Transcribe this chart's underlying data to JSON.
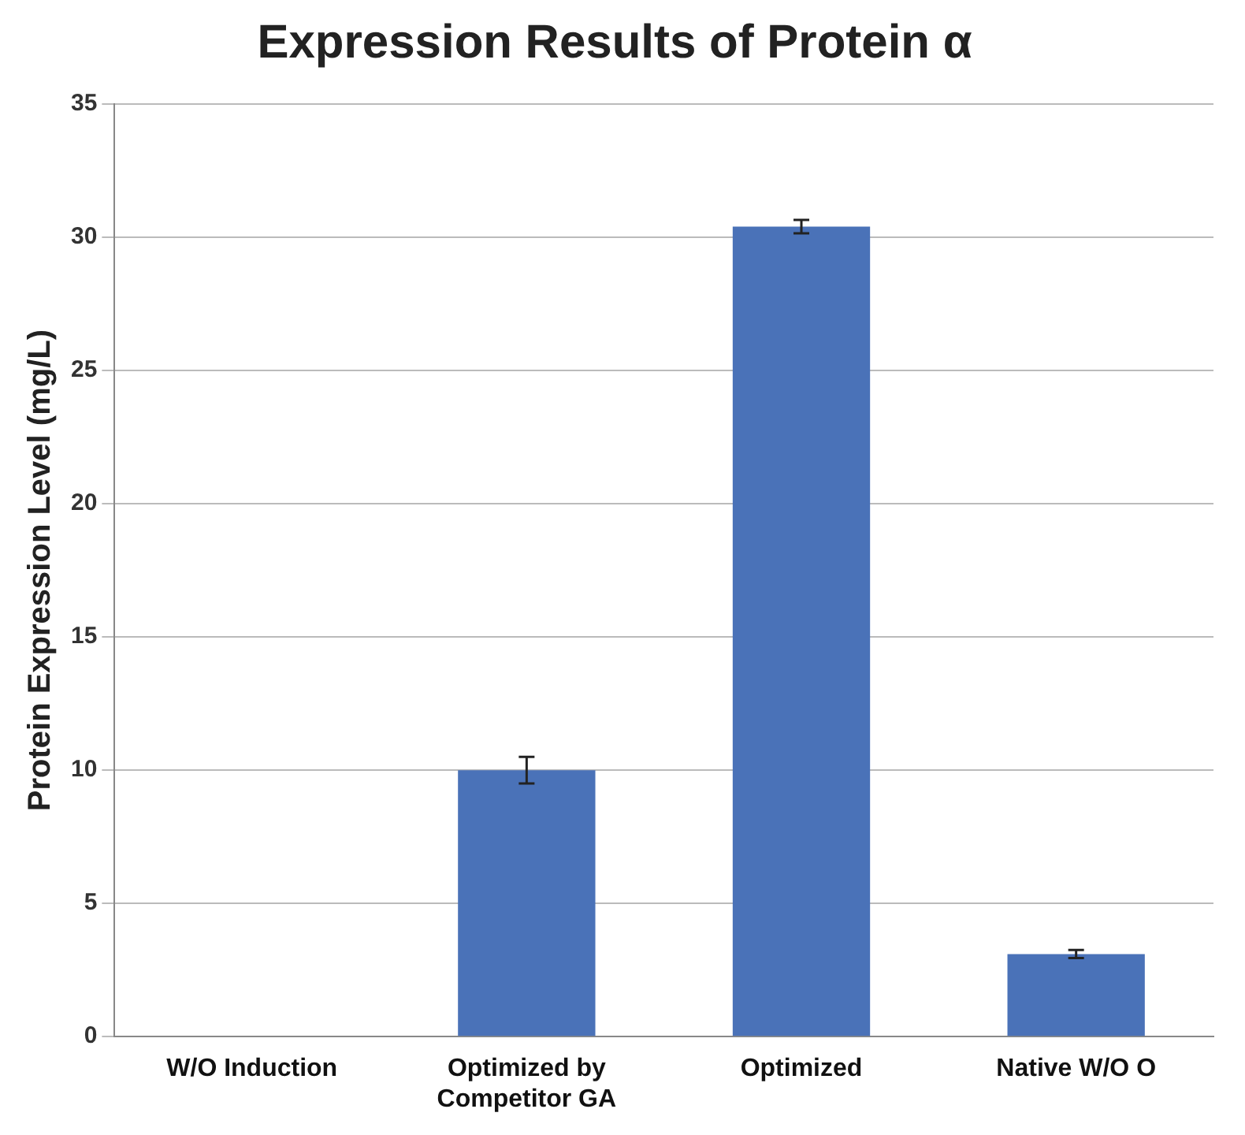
{
  "chart_data": {
    "type": "bar",
    "title": "Expression Results of Protein α",
    "ylabel": "Protein Expression Level (mg/L)",
    "categories": [
      "W/O Induction",
      "Optimized by Competitor GA",
      "Optimized",
      "Native W/O O"
    ],
    "values": [
      0,
      10,
      30.4,
      3.1
    ],
    "errors": [
      null,
      0.5,
      0.25,
      0.15
    ],
    "color": "#4a72b8",
    "ylim": [
      0,
      35
    ],
    "yticks": [
      0,
      5,
      10,
      15,
      20,
      25,
      30,
      35
    ],
    "grid": "y",
    "legend": false
  }
}
